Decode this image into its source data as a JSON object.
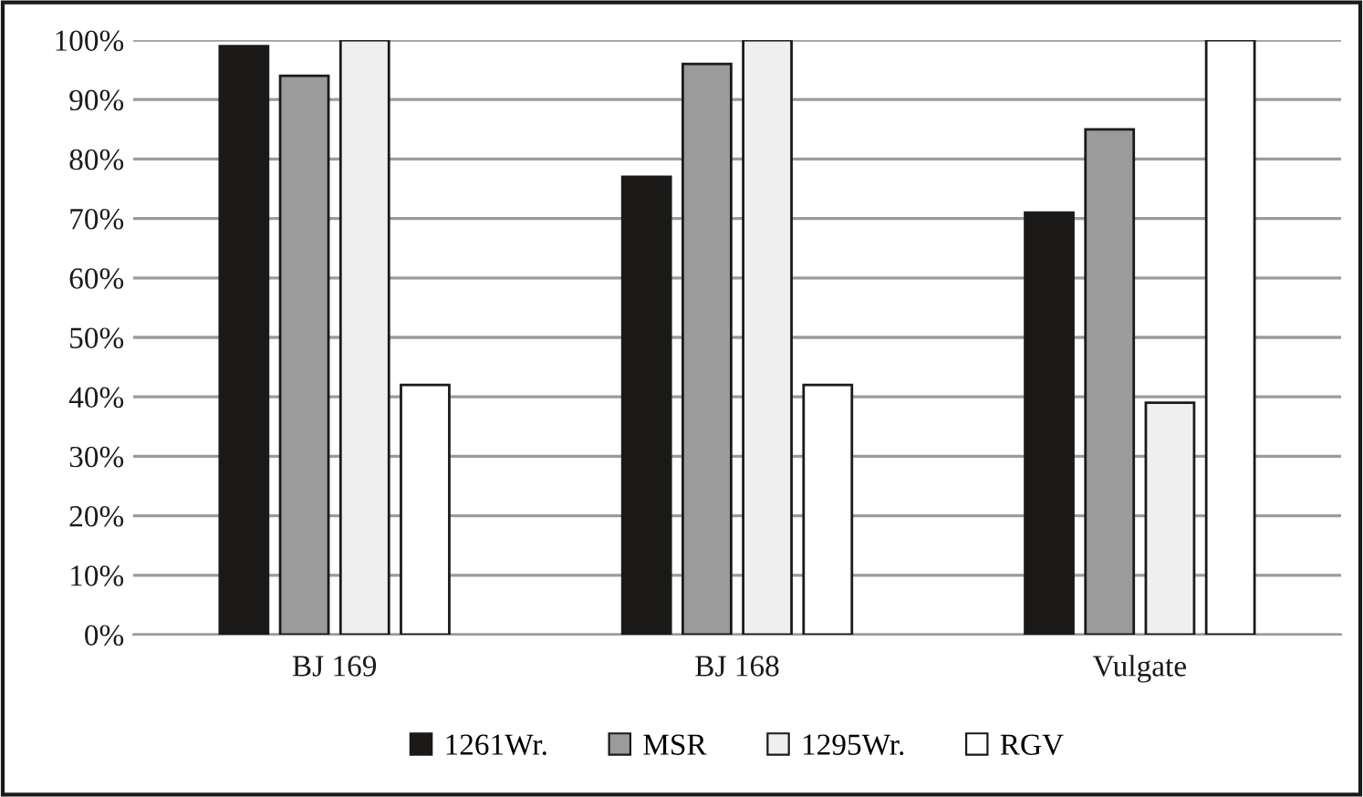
{
  "chart_data": {
    "type": "bar",
    "categories": [
      "BJ 169",
      "BJ 168",
      "Vulgate"
    ],
    "series": [
      {
        "name": "1261Wr.",
        "color": "#1a1917",
        "values": [
          99,
          77,
          71
        ]
      },
      {
        "name": "MSR",
        "color": "#9b9b9b",
        "values": [
          94,
          96,
          85
        ]
      },
      {
        "name": "1295Wr.",
        "color": "#efefef",
        "values": [
          100,
          100,
          39
        ]
      },
      {
        "name": "RGV",
        "color": "#ffffff",
        "values": [
          42,
          42,
          100
        ]
      }
    ],
    "ylim": [
      0,
      100
    ],
    "yticks": [
      {
        "value": 0,
        "label": "0%"
      },
      {
        "value": 10,
        "label": "10%"
      },
      {
        "value": 20,
        "label": "20%"
      },
      {
        "value": 30,
        "label": "30%"
      },
      {
        "value": 40,
        "label": "40%"
      },
      {
        "value": 50,
        "label": "50%"
      },
      {
        "value": 60,
        "label": "60%"
      },
      {
        "value": 70,
        "label": "70%"
      },
      {
        "value": 80,
        "label": "80%"
      },
      {
        "value": 90,
        "label": "90%"
      },
      {
        "value": 100,
        "label": "100%"
      }
    ],
    "grid": "y",
    "legend": "bottom"
  }
}
